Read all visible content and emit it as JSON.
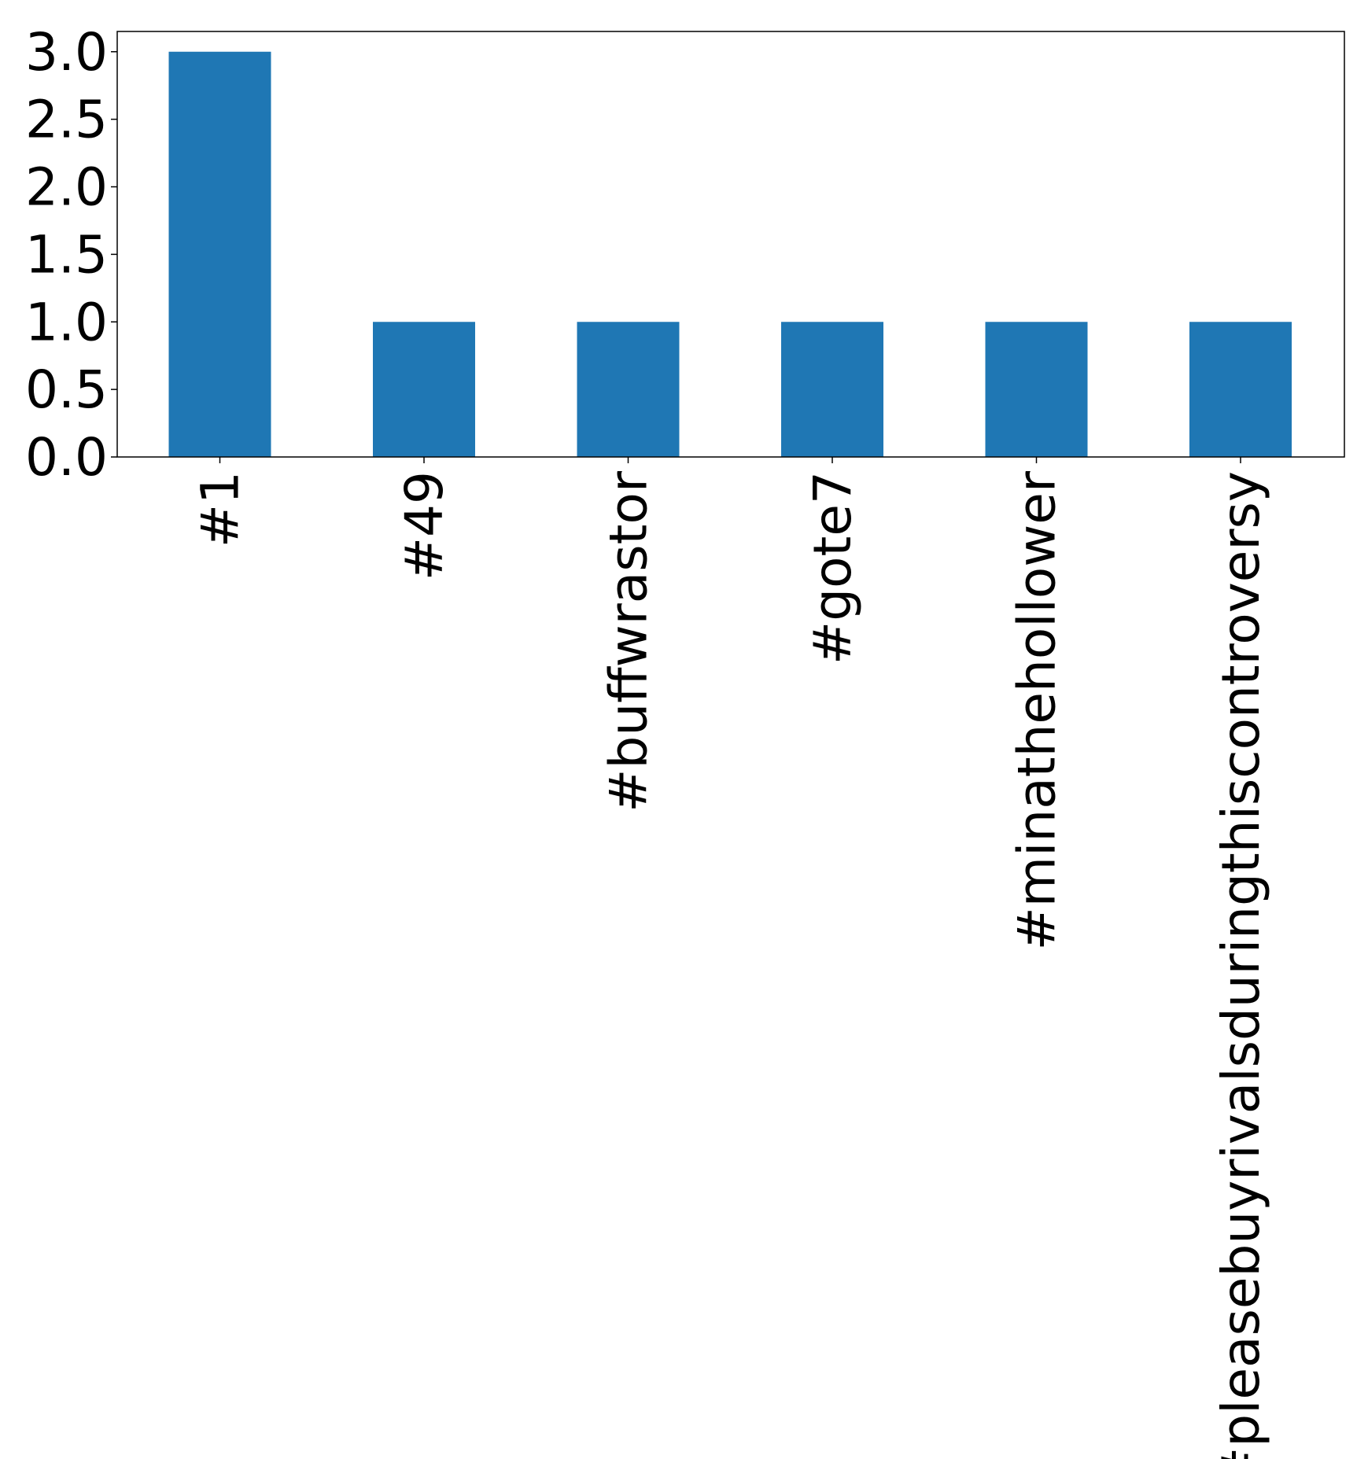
{
  "chart_data": {
    "type": "bar",
    "title": "",
    "xlabel": "",
    "ylabel": "",
    "categories": [
      "#1",
      "#49",
      "#buffwrastor",
      "#gote7",
      "#minathehollower",
      "#pleasebuyrivalsduringthiscontroversy"
    ],
    "values": [
      3,
      1,
      1,
      1,
      1,
      1
    ],
    "ylim": [
      0,
      3.15
    ],
    "yticks": [
      0.0,
      0.5,
      1.0,
      1.5,
      2.0,
      2.5,
      3.0
    ],
    "ytick_labels": [
      "0.0",
      "0.5",
      "1.0",
      "1.5",
      "2.0",
      "2.5",
      "3.0"
    ],
    "bar_color": "#1f77b4",
    "grid": false,
    "legend": "none"
  }
}
